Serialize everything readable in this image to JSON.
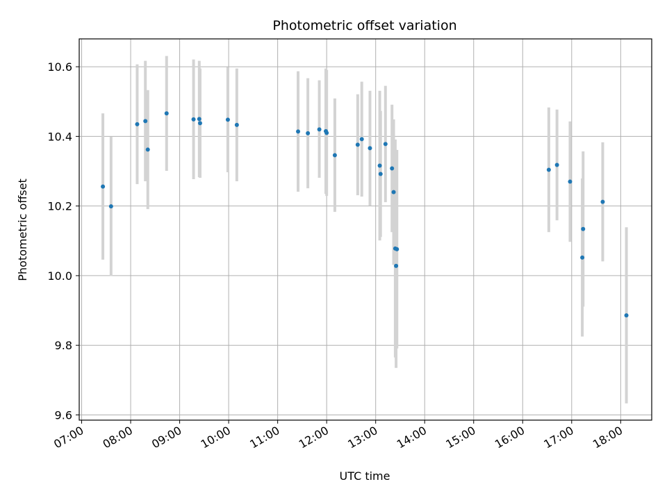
{
  "chart_data": {
    "type": "scatter",
    "title": "Photometric offset variation",
    "xlabel": "UTC time",
    "ylabel": "Photometric offset",
    "xlim": [
      "06:57",
      "18:38"
    ],
    "ylim": [
      9.585,
      10.68
    ],
    "xticks": [
      "07:00",
      "08:00",
      "09:00",
      "10:00",
      "11:00",
      "12:00",
      "13:00",
      "14:00",
      "15:00",
      "16:00",
      "17:00",
      "18:00"
    ],
    "yticks": [
      "9.6",
      "9.8",
      "10.0",
      "10.2",
      "10.4",
      "10.6"
    ],
    "grid": true,
    "marker_color": "#1f77b4",
    "errorbar_color": "#d3d3d3",
    "points": [
      {
        "t": "07:26",
        "y": 10.256,
        "lo": 10.046,
        "hi": 10.466
      },
      {
        "t": "07:36",
        "y": 10.199,
        "lo": 9.999,
        "hi": 10.399
      },
      {
        "t": "08:08",
        "y": 10.435,
        "lo": 10.263,
        "hi": 10.607
      },
      {
        "t": "08:18",
        "y": 10.444,
        "lo": 10.271,
        "hi": 10.617
      },
      {
        "t": "08:21",
        "y": 10.362,
        "lo": 10.191,
        "hi": 10.533
      },
      {
        "t": "08:44",
        "y": 10.466,
        "lo": 10.301,
        "hi": 10.631
      },
      {
        "t": "09:17",
        "y": 10.449,
        "lo": 10.277,
        "hi": 10.621
      },
      {
        "t": "09:24",
        "y": 10.45,
        "lo": 10.283,
        "hi": 10.617
      },
      {
        "t": "09:25",
        "y": 10.438,
        "lo": 10.281,
        "hi": 10.595
      },
      {
        "t": "09:59",
        "y": 10.448,
        "lo": 10.297,
        "hi": 10.599
      },
      {
        "t": "10:10",
        "y": 10.433,
        "lo": 10.271,
        "hi": 10.595
      },
      {
        "t": "11:25",
        "y": 10.414,
        "lo": 10.241,
        "hi": 10.587
      },
      {
        "t": "11:37",
        "y": 10.409,
        "lo": 10.251,
        "hi": 10.567
      },
      {
        "t": "11:51",
        "y": 10.42,
        "lo": 10.281,
        "hi": 10.561
      },
      {
        "t": "11:59",
        "y": 10.415,
        "lo": 10.235,
        "hi": 10.595
      },
      {
        "t": "12:00",
        "y": 10.41,
        "lo": 10.229,
        "hi": 10.591
      },
      {
        "t": "12:10",
        "y": 10.346,
        "lo": 10.183,
        "hi": 10.509
      },
      {
        "t": "12:38",
        "y": 10.376,
        "lo": 10.231,
        "hi": 10.521
      },
      {
        "t": "12:43",
        "y": 10.392,
        "lo": 10.227,
        "hi": 10.557
      },
      {
        "t": "12:53",
        "y": 10.366,
        "lo": 10.201,
        "hi": 10.531
      },
      {
        "t": "13:05",
        "y": 10.316,
        "lo": 10.101,
        "hi": 10.531
      },
      {
        "t": "13:06",
        "y": 10.292,
        "lo": 10.111,
        "hi": 10.473
      },
      {
        "t": "13:12",
        "y": 10.378,
        "lo": 10.211,
        "hi": 10.545
      },
      {
        "t": "13:20",
        "y": 10.308,
        "lo": 10.125,
        "hi": 10.491
      },
      {
        "t": "13:22",
        "y": 10.24,
        "lo": 10.031,
        "hi": 10.449
      },
      {
        "t": "13:24",
        "y": 10.078,
        "lo": 9.765,
        "hi": 10.391
      },
      {
        "t": "13:26",
        "y": 10.076,
        "lo": 9.791,
        "hi": 10.361
      },
      {
        "t": "13:25",
        "y": 10.028,
        "lo": 9.735,
        "hi": 10.321
      },
      {
        "t": "16:32",
        "y": 10.304,
        "lo": 10.125,
        "hi": 10.483
      },
      {
        "t": "16:42",
        "y": 10.318,
        "lo": 10.159,
        "hi": 10.477
      },
      {
        "t": "16:58",
        "y": 10.27,
        "lo": 10.097,
        "hi": 10.443
      },
      {
        "t": "17:13",
        "y": 10.052,
        "lo": 9.825,
        "hi": 10.279
      },
      {
        "t": "17:14",
        "y": 10.134,
        "lo": 9.911,
        "hi": 10.357
      },
      {
        "t": "17:38",
        "y": 10.212,
        "lo": 10.041,
        "hi": 10.383
      },
      {
        "t": "18:07",
        "y": 9.886,
        "lo": 9.633,
        "hi": 10.139
      }
    ]
  }
}
